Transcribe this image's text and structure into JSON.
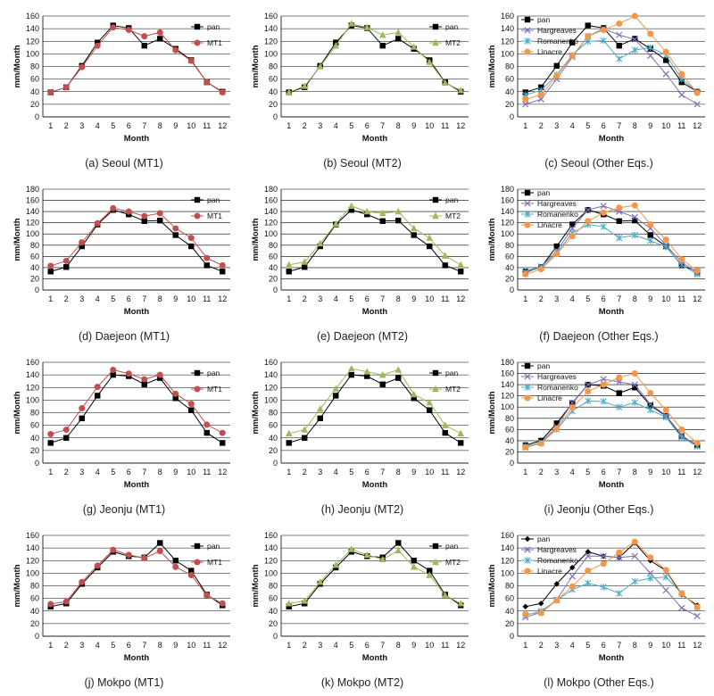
{
  "chart_data": [
    {
      "type": "line",
      "caption": "(a) Seoul (MT1)",
      "xlabel": "Month",
      "ylabel": "mm/Month",
      "ylim": [
        0,
        160
      ],
      "yticks": [
        0,
        20,
        40,
        60,
        80,
        100,
        120,
        140,
        160
      ],
      "categories": [
        "1",
        "2",
        "3",
        "4",
        "5",
        "6",
        "7",
        "8",
        "9",
        "10",
        "11",
        "12"
      ],
      "legend": "right",
      "series": [
        {
          "name": "pan",
          "color": "#000000",
          "marker": "square",
          "values": [
            39,
            47,
            81,
            118,
            145,
            141,
            113,
            124,
            108,
            90,
            55,
            40
          ]
        },
        {
          "name": "MT1",
          "color": "#c0504d",
          "marker": "circle",
          "values": [
            39,
            47,
            79,
            113,
            142,
            138,
            128,
            134,
            106,
            89,
            55,
            39
          ]
        }
      ]
    },
    {
      "type": "line",
      "caption": "(b) Seoul (MT2)",
      "xlabel": "Month",
      "ylabel": "mm/Month",
      "ylim": [
        0,
        160
      ],
      "yticks": [
        0,
        20,
        40,
        60,
        80,
        100,
        120,
        140,
        160
      ],
      "categories": [
        "1",
        "2",
        "3",
        "4",
        "5",
        "6",
        "7",
        "8",
        "9",
        "10",
        "11",
        "12"
      ],
      "legend": "right",
      "series": [
        {
          "name": "pan",
          "color": "#000000",
          "marker": "square",
          "values": [
            39,
            47,
            81,
            118,
            145,
            141,
            113,
            124,
            108,
            90,
            55,
            40
          ]
        },
        {
          "name": "MT2",
          "color": "#9bbb59",
          "marker": "triangle",
          "values": [
            39,
            49,
            80,
            113,
            148,
            142,
            130,
            134,
            111,
            87,
            54,
            42
          ]
        }
      ]
    },
    {
      "type": "line",
      "caption": "(c) Seoul (Other Eqs.)",
      "xlabel": "Month",
      "ylabel": "mm/Month",
      "ylim": [
        0,
        160
      ],
      "yticks": [
        0,
        20,
        40,
        60,
        80,
        100,
        120,
        140,
        160
      ],
      "categories": [
        "1",
        "2",
        "3",
        "4",
        "5",
        "6",
        "7",
        "8",
        "9",
        "10",
        "11",
        "12"
      ],
      "legend": "top-left",
      "series": [
        {
          "name": "pan",
          "color": "#000000",
          "marker": "square",
          "values": [
            39,
            47,
            81,
            118,
            145,
            141,
            113,
            124,
            108,
            90,
            55,
            40
          ]
        },
        {
          "name": "Hargreaves",
          "color": "#7f6fb6",
          "marker": "cross",
          "values": [
            20,
            28,
            60,
            95,
            128,
            140,
            130,
            123,
            97,
            68,
            35,
            20
          ]
        },
        {
          "name": "Romanenko",
          "color": "#4bacc6",
          "marker": "star",
          "values": [
            35,
            42,
            67,
            98,
            120,
            121,
            92,
            106,
            110,
            98,
            60,
            40
          ]
        },
        {
          "name": "Linacre",
          "color": "#f79646",
          "marker": "circle",
          "values": [
            28,
            35,
            65,
            97,
            128,
            138,
            148,
            160,
            132,
            103,
            68,
            38
          ]
        }
      ]
    },
    {
      "type": "line",
      "caption": "(d) Daejeon (MT1)",
      "xlabel": "Month",
      "ylabel": "mm/Month",
      "ylim": [
        0,
        180
      ],
      "yticks": [
        0,
        20,
        40,
        60,
        80,
        100,
        120,
        140,
        160,
        180
      ],
      "categories": [
        "1",
        "2",
        "3",
        "4",
        "5",
        "6",
        "7",
        "8",
        "9",
        "10",
        "11",
        "12"
      ],
      "legend": "right",
      "series": [
        {
          "name": "pan",
          "color": "#000000",
          "marker": "square",
          "values": [
            33,
            41,
            78,
            117,
            143,
            135,
            123,
            124,
            98,
            78,
            44,
            33
          ]
        },
        {
          "name": "MT1",
          "color": "#c0504d",
          "marker": "circle",
          "values": [
            43,
            52,
            85,
            119,
            146,
            140,
            132,
            137,
            110,
            93,
            57,
            44
          ]
        }
      ]
    },
    {
      "type": "line",
      "caption": "(e) Daejeon (MT2)",
      "xlabel": "Month",
      "ylabel": "mm/Month",
      "ylim": [
        0,
        180
      ],
      "yticks": [
        0,
        20,
        40,
        60,
        80,
        100,
        120,
        140,
        160,
        180
      ],
      "categories": [
        "1",
        "2",
        "3",
        "4",
        "5",
        "6",
        "7",
        "8",
        "9",
        "10",
        "11",
        "12"
      ],
      "legend": "right",
      "series": [
        {
          "name": "pan",
          "color": "#000000",
          "marker": "square",
          "values": [
            33,
            41,
            78,
            117,
            143,
            135,
            123,
            124,
            98,
            78,
            44,
            33
          ]
        },
        {
          "name": "MT2",
          "color": "#9bbb59",
          "marker": "triangle",
          "values": [
            45,
            50,
            83,
            118,
            150,
            140,
            137,
            140,
            110,
            93,
            61,
            45
          ]
        }
      ]
    },
    {
      "type": "line",
      "caption": "(f) Daejeon (Other Eqs.)",
      "xlabel": "Month",
      "ylabel": "mm/Month",
      "ylim": [
        0,
        180
      ],
      "yticks": [
        0,
        20,
        40,
        60,
        80,
        100,
        120,
        140,
        160,
        180
      ],
      "categories": [
        "1",
        "2",
        "3",
        "4",
        "5",
        "6",
        "7",
        "8",
        "9",
        "10",
        "11",
        "12"
      ],
      "legend": "top-left",
      "series": [
        {
          "name": "pan",
          "color": "#000000",
          "marker": "square",
          "values": [
            33,
            41,
            78,
            117,
            143,
            135,
            123,
            124,
            98,
            78,
            44,
            33
          ]
        },
        {
          "name": "Hargreaves",
          "color": "#7f6fb6",
          "marker": "cross",
          "values": [
            30,
            42,
            70,
            110,
            143,
            150,
            140,
            130,
            110,
            80,
            50,
            30
          ]
        },
        {
          "name": "Romanenko",
          "color": "#4bacc6",
          "marker": "star",
          "values": [
            32,
            40,
            66,
            102,
            117,
            113,
            93,
            98,
            88,
            77,
            45,
            28
          ]
        },
        {
          "name": "Linacre",
          "color": "#f79646",
          "marker": "circle",
          "values": [
            28,
            37,
            64,
            96,
            123,
            138,
            147,
            151,
            117,
            90,
            55,
            34
          ]
        }
      ]
    },
    {
      "type": "line",
      "caption": "(g) Jeonju (MT1)",
      "xlabel": "Month",
      "ylabel": "mm/Month",
      "ylim": [
        0,
        160
      ],
      "yticks": [
        0,
        20,
        40,
        60,
        80,
        100,
        120,
        140,
        160
      ],
      "categories": [
        "1",
        "2",
        "3",
        "4",
        "5",
        "6",
        "7",
        "8",
        "9",
        "10",
        "11",
        "12"
      ],
      "legend": "right",
      "series": [
        {
          "name": "pan",
          "color": "#000000",
          "marker": "square",
          "values": [
            32,
            40,
            71,
            107,
            140,
            138,
            125,
            135,
            103,
            84,
            48,
            32
          ]
        },
        {
          "name": "MT1",
          "color": "#c0504d",
          "marker": "circle",
          "values": [
            46,
            53,
            87,
            121,
            148,
            142,
            133,
            140,
            110,
            94,
            61,
            48
          ]
        }
      ]
    },
    {
      "type": "line",
      "caption": "(h) Jeonju (MT2)",
      "xlabel": "Month",
      "ylabel": "mm/Month",
      "ylim": [
        0,
        160
      ],
      "yticks": [
        0,
        20,
        40,
        60,
        80,
        100,
        120,
        140,
        160
      ],
      "categories": [
        "1",
        "2",
        "3",
        "4",
        "5",
        "6",
        "7",
        "8",
        "9",
        "10",
        "11",
        "12"
      ],
      "legend": "right",
      "series": [
        {
          "name": "pan",
          "color": "#000000",
          "marker": "square",
          "values": [
            32,
            40,
            71,
            107,
            140,
            138,
            125,
            135,
            103,
            84,
            48,
            32
          ]
        },
        {
          "name": "MT2",
          "color": "#9bbb59",
          "marker": "triangle",
          "values": [
            47,
            53,
            86,
            118,
            150,
            145,
            140,
            148,
            109,
            96,
            60,
            47
          ]
        }
      ]
    },
    {
      "type": "line",
      "caption": "(i) Jeonju (Other Eqs.)",
      "xlabel": "Month",
      "ylabel": "mm/Month",
      "ylim": [
        0,
        180
      ],
      "yticks": [
        0,
        20,
        40,
        60,
        80,
        100,
        120,
        140,
        160,
        180
      ],
      "categories": [
        "1",
        "2",
        "3",
        "4",
        "5",
        "6",
        "7",
        "8",
        "9",
        "10",
        "11",
        "12"
      ],
      "legend": "top-left",
      "series": [
        {
          "name": "pan",
          "color": "#000000",
          "marker": "square",
          "values": [
            32,
            40,
            71,
            107,
            140,
            138,
            125,
            135,
            103,
            84,
            48,
            32
          ]
        },
        {
          "name": "Hargreaves",
          "color": "#7f6fb6",
          "marker": "cross",
          "values": [
            28,
            37,
            65,
            108,
            140,
            150,
            145,
            140,
            105,
            85,
            50,
            30
          ]
        },
        {
          "name": "Romanenko",
          "color": "#4bacc6",
          "marker": "star",
          "values": [
            30,
            36,
            60,
            93,
            111,
            110,
            100,
            108,
            95,
            82,
            46,
            30
          ]
        },
        {
          "name": "Linacre",
          "color": "#f79646",
          "marker": "circle",
          "values": [
            28,
            35,
            62,
            99,
            128,
            140,
            153,
            160,
            125,
            95,
            60,
            36
          ]
        }
      ]
    },
    {
      "type": "line",
      "caption": "(j) Mokpo (MT1)",
      "xlabel": "Month",
      "ylabel": "mm/Month",
      "ylim": [
        0,
        160
      ],
      "yticks": [
        0,
        20,
        40,
        60,
        80,
        100,
        120,
        140,
        160
      ],
      "categories": [
        "1",
        "2",
        "3",
        "4",
        "5",
        "6",
        "7",
        "8",
        "9",
        "10",
        "11",
        "12"
      ],
      "legend": "right",
      "series": [
        {
          "name": "pan",
          "color": "#000000",
          "marker": "square",
          "values": [
            47,
            52,
            83,
            109,
            134,
            127,
            125,
            148,
            120,
            104,
            66,
            49
          ]
        },
        {
          "name": "MT1",
          "color": "#c0504d",
          "marker": "circle",
          "values": [
            51,
            55,
            86,
            112,
            137,
            129,
            124,
            135,
            110,
            97,
            65,
            52
          ]
        }
      ]
    },
    {
      "type": "line",
      "caption": "(k) Mokpo (MT2)",
      "xlabel": "Month",
      "ylabel": "mm/Month",
      "ylim": [
        0,
        160
      ],
      "yticks": [
        0,
        20,
        40,
        60,
        80,
        100,
        120,
        140,
        160
      ],
      "categories": [
        "1",
        "2",
        "3",
        "4",
        "5",
        "6",
        "7",
        "8",
        "9",
        "10",
        "11",
        "12"
      ],
      "legend": "right",
      "series": [
        {
          "name": "pan",
          "color": "#000000",
          "marker": "square",
          "values": [
            47,
            52,
            83,
            109,
            134,
            127,
            125,
            148,
            120,
            104,
            66,
            49
          ]
        },
        {
          "name": "MT2",
          "color": "#9bbb59",
          "marker": "triangle",
          "values": [
            52,
            56,
            86,
            113,
            138,
            129,
            122,
            136,
            110,
            97,
            65,
            52
          ]
        }
      ]
    },
    {
      "type": "line",
      "caption": "(l) Mokpo (Other Eqs.)",
      "xlabel": "Month",
      "ylabel": "mm/Month",
      "ylim": [
        0,
        160
      ],
      "yticks": [
        0,
        20,
        40,
        60,
        80,
        100,
        120,
        140,
        160
      ],
      "categories": [
        "1",
        "2",
        "3",
        "4",
        "5",
        "6",
        "7",
        "8",
        "9",
        "10",
        "11",
        "12"
      ],
      "legend": "top-left",
      "series": [
        {
          "name": "pan",
          "color": "#000000",
          "marker": "diamond",
          "values": [
            47,
            52,
            83,
            109,
            134,
            127,
            125,
            148,
            120,
            104,
            66,
            49
          ]
        },
        {
          "name": "Hargreaves",
          "color": "#7f6fb6",
          "marker": "cross",
          "values": [
            30,
            38,
            58,
            95,
            127,
            127,
            125,
            127,
            100,
            73,
            45,
            32
          ]
        },
        {
          "name": "Romanenko",
          "color": "#4bacc6",
          "marker": "star",
          "values": [
            33,
            40,
            57,
            74,
            84,
            78,
            68,
            87,
            92,
            94,
            68,
            46
          ]
        },
        {
          "name": "Linacre",
          "color": "#f79646",
          "marker": "circle",
          "values": [
            35,
            37,
            57,
            79,
            104,
            115,
            133,
            150,
            125,
            105,
            68,
            46
          ]
        }
      ]
    }
  ]
}
